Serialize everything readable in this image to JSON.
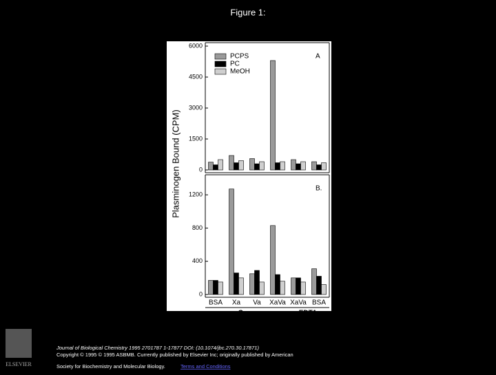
{
  "page_title": "Figure 1:",
  "y_axis_label": "Plasminogen Bound (CPM)",
  "chart_data": [
    {
      "type": "bar",
      "panel_label": "A",
      "categories": [
        "BSA",
        "Xa",
        "Va",
        "XaVa",
        "XaVa",
        "BSA"
      ],
      "series": [
        {
          "name": "PCPS",
          "color": "#9a9a9a",
          "values": [
            380,
            700,
            550,
            5300,
            500,
            400
          ]
        },
        {
          "name": "PC",
          "color": "#000000",
          "values": [
            250,
            350,
            300,
            350,
            300,
            250
          ]
        },
        {
          "name": "MeOH",
          "color": "#cfcfcf",
          "values": [
            500,
            450,
            400,
            400,
            400,
            350
          ]
        }
      ],
      "ylim": [
        0,
        6000
      ],
      "yticks": [
        0,
        1500,
        3000,
        4500,
        6000
      ],
      "legend": "top-left"
    },
    {
      "type": "bar",
      "panel_label": "B.",
      "categories": [
        "BSA",
        "Xa",
        "Va",
        "XaVa",
        "XaVa",
        "BSA"
      ],
      "series": [
        {
          "name": "PCPS",
          "color": "#9a9a9a",
          "values": [
            170,
            1270,
            250,
            830,
            200,
            310
          ]
        },
        {
          "name": "PC",
          "color": "#000000",
          "values": [
            170,
            260,
            290,
            240,
            200,
            220
          ]
        },
        {
          "name": "MeOH",
          "color": "#cfcfcf",
          "values": [
            150,
            200,
            150,
            160,
            150,
            120
          ]
        }
      ],
      "ylim": [
        0,
        1400
      ],
      "yticks": [
        0,
        400,
        800,
        1200
      ],
      "group_labels": [
        "Ca",
        "EDTA"
      ]
    }
  ],
  "citation": {
    "line1": "Journal of Biological Chemistry 1995 2701787 1-17877 DOI: (10.1074/jbc.270.30.17871)",
    "line2": "Copyright © 1995 © 1995 ASBMB. Currently published by Elsevier Inc; originally published by American",
    "line3": "Society for Biochemistry and Molecular Biology.",
    "link": "Terms and Conditions"
  },
  "logo": "ELSEVIER"
}
